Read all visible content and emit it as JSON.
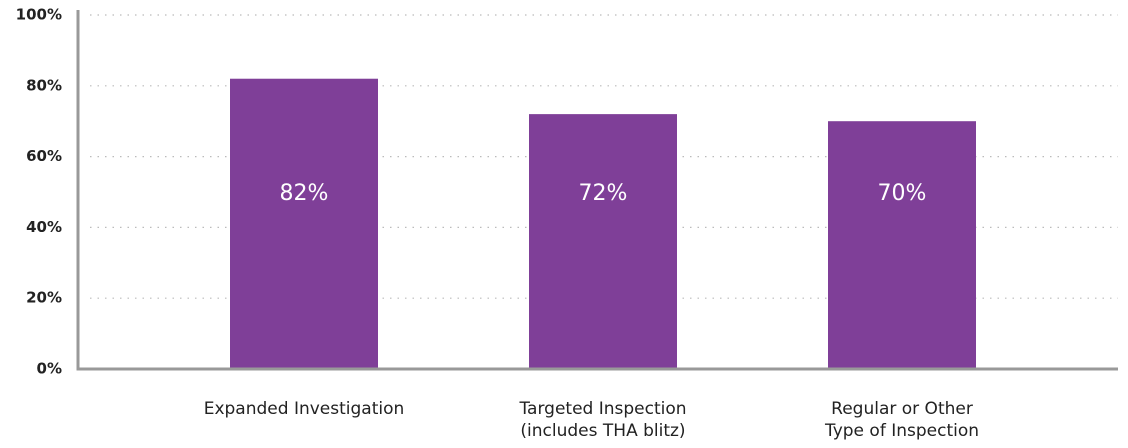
{
  "chart_data": {
    "type": "bar",
    "categories": [
      "Expanded Investigation",
      "Targeted Inspection\n(includes THA blitz)",
      "Regular or Other\nType of Inspection"
    ],
    "values": [
      82,
      72,
      70
    ],
    "value_labels": [
      "82%",
      "72%",
      "70%"
    ],
    "color": "#7f3f98",
    "ylim": [
      0,
      100
    ],
    "yticks": [
      {
        "value": 0,
        "label": "0%"
      },
      {
        "value": 20,
        "label": "20%"
      },
      {
        "value": 40,
        "label": "40%"
      },
      {
        "value": 60,
        "label": "60%"
      },
      {
        "value": 80,
        "label": "80%"
      },
      {
        "value": 100,
        "label": "100%"
      }
    ],
    "grid": true
  }
}
